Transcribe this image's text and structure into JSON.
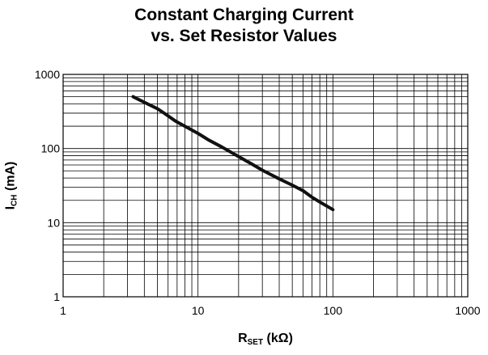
{
  "chart_data": {
    "type": "line",
    "title_line1": "Constant Charging Current",
    "title_line2": "vs. Set Resistor Values",
    "xlabel_main": "R",
    "xlabel_sub": "SET",
    "xlabel_unit": " (kΩ)",
    "ylabel_main": "I",
    "ylabel_sub": "CH",
    "ylabel_unit": " (mA)",
    "x_scale": "log",
    "y_scale": "log",
    "xlim": [
      1,
      1000
    ],
    "ylim": [
      1,
      1000
    ],
    "x_ticks": [
      "1",
      "10",
      "100",
      "1000"
    ],
    "y_ticks": [
      "1",
      "10",
      "100",
      "1000"
    ],
    "grid": true,
    "line_color": "#111111",
    "series": [
      {
        "x": [
          3.3,
          4,
          5,
          5.6,
          6.8,
          8,
          10,
          12,
          15,
          20,
          25,
          30,
          40,
          50,
          60,
          70,
          80,
          100
        ],
        "y": [
          500,
          420,
          345,
          300,
          235,
          200,
          160,
          130,
          105,
          78,
          62,
          51,
          39,
          32,
          27,
          22,
          19,
          15
        ]
      }
    ]
  }
}
